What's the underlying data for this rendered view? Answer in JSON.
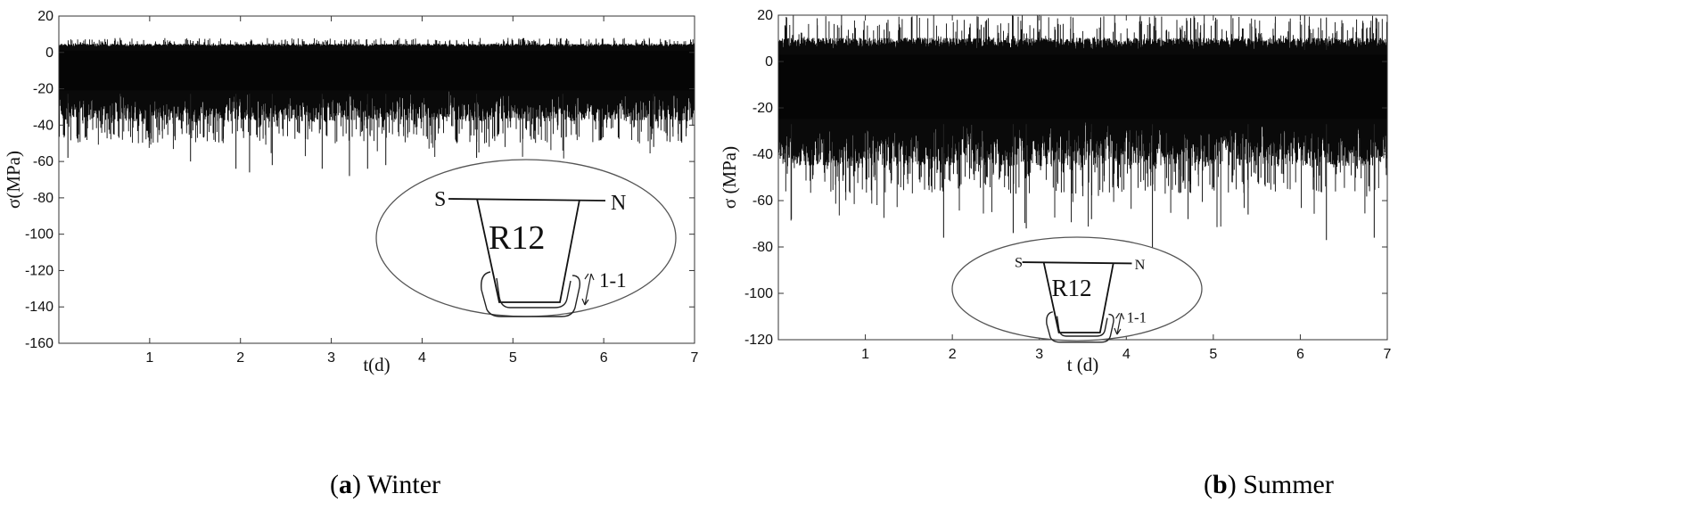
{
  "panels": [
    {
      "caption_letter": "a",
      "caption_text": "Winter",
      "chart_data": {
        "type": "line",
        "title": "",
        "xlabel": "t(d)",
        "ylabel": "σ(MPa)",
        "xlim": [
          0,
          7
        ],
        "ylim": [
          -160,
          20
        ],
        "xticks": [
          1,
          2,
          3,
          4,
          5,
          6,
          7
        ],
        "yticks": [
          20,
          0,
          -20,
          -40,
          -60,
          -80,
          -100,
          -120,
          -140,
          -160
        ],
        "grid": false,
        "band": {
          "upper_typical": 3,
          "upper_max": 8,
          "lower_typical": -38,
          "lower_spike_min": -68
        },
        "spikes": [
          {
            "x": 0.1,
            "y": -58
          },
          {
            "x": 1.45,
            "y": -60
          },
          {
            "x": 1.95,
            "y": -64
          },
          {
            "x": 2.1,
            "y": -66
          },
          {
            "x": 2.35,
            "y": -62
          },
          {
            "x": 2.9,
            "y": -64
          },
          {
            "x": 3.2,
            "y": -68
          },
          {
            "x": 3.4,
            "y": -64
          },
          {
            "x": 3.6,
            "y": -62
          },
          {
            "x": 4.6,
            "y": -58
          },
          {
            "x": 5.55,
            "y": -54
          },
          {
            "x": 6.55,
            "y": -52
          }
        ]
      },
      "inset": {
        "left_label": "S",
        "right_label": "N",
        "rib_label": "R12",
        "section_label": "1-1"
      }
    },
    {
      "caption_letter": "b",
      "caption_text": "Summer",
      "chart_data": {
        "type": "line",
        "title": "",
        "xlabel": "t (d)",
        "ylabel": "σ (MPa)",
        "xlim": [
          0,
          7
        ],
        "ylim": [
          -120,
          20
        ],
        "xticks": [
          1,
          2,
          3,
          4,
          5,
          6,
          7
        ],
        "yticks": [
          20,
          0,
          -20,
          -40,
          -60,
          -80,
          -100,
          -120
        ],
        "grid": false,
        "band": {
          "upper_typical": 5,
          "upper_max": 20,
          "lower_typical": -45,
          "lower_spike_min": -83
        },
        "spikes": [
          {
            "x": 0.15,
            "y": -68
          },
          {
            "x": 1.9,
            "y": -76
          },
          {
            "x": 2.7,
            "y": -74
          },
          {
            "x": 2.85,
            "y": -72
          },
          {
            "x": 3.6,
            "y": -68
          },
          {
            "x": 4.3,
            "y": -83
          },
          {
            "x": 5.4,
            "y": -66
          },
          {
            "x": 6.3,
            "y": -77
          },
          {
            "x": 6.85,
            "y": -76
          },
          {
            "x": 6.05,
            "y": 20
          },
          {
            "x": 6.3,
            "y": 19
          }
        ]
      },
      "inset": {
        "left_label": "S",
        "right_label": "N",
        "rib_label": "R12",
        "section_label": "1-1"
      }
    }
  ]
}
